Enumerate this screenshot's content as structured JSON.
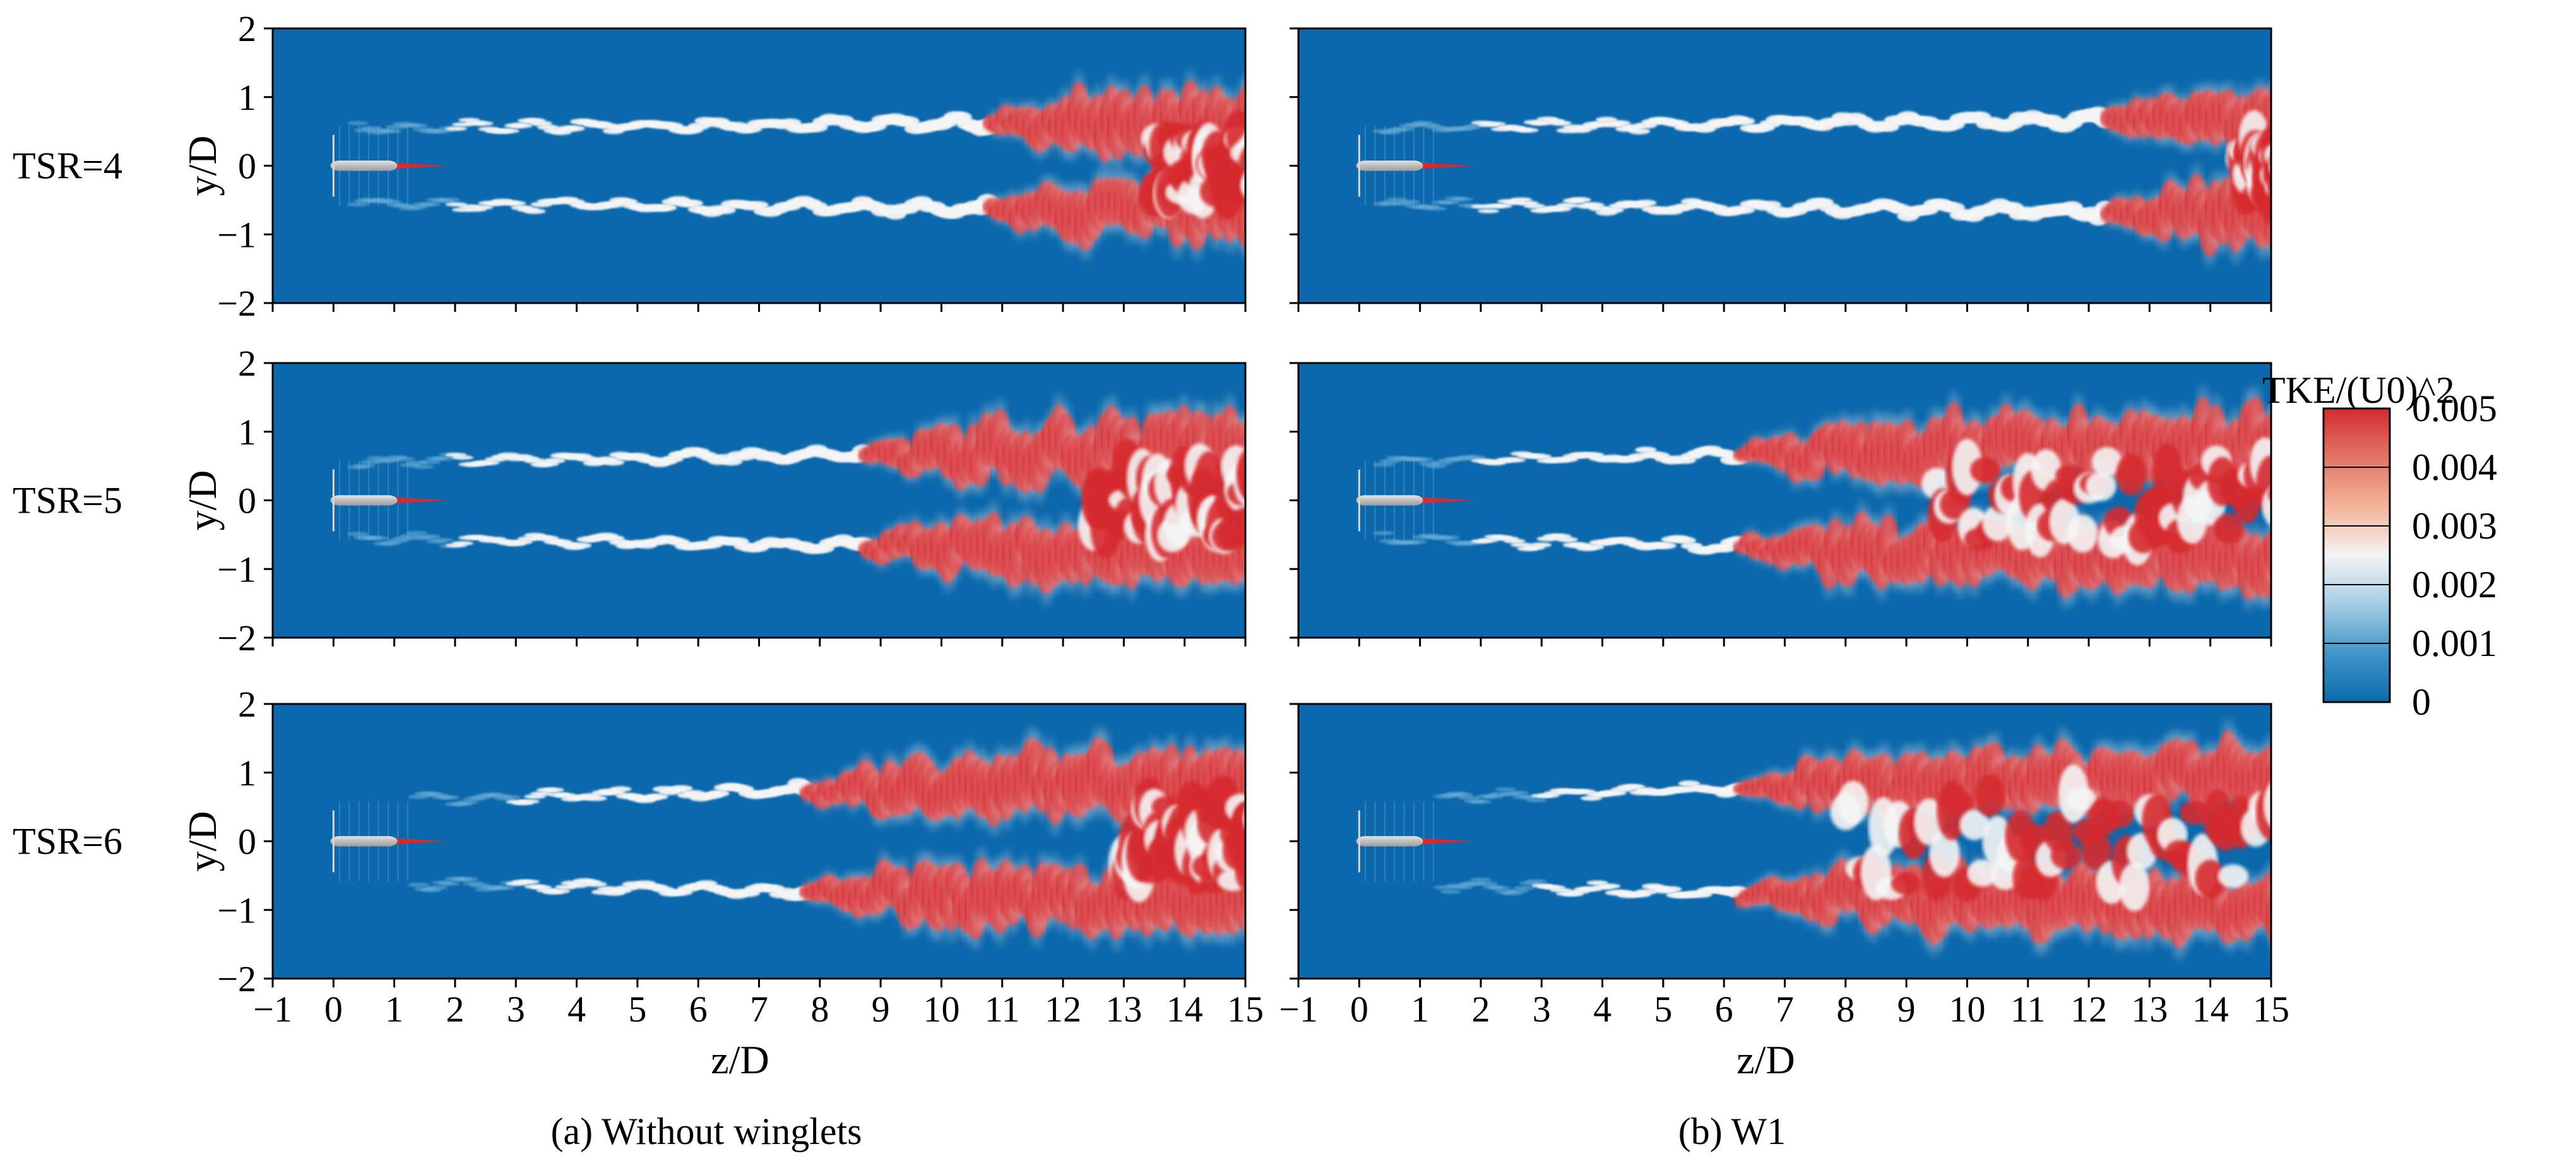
{
  "chart_data": [
    {
      "type": "heatmap",
      "panel_group": "(a) Without winglets",
      "column": 0,
      "row_label": "TSR=4",
      "xlabel": "",
      "ylabel": "y/D",
      "xlim": [
        -1,
        15
      ],
      "ylim": [
        -2,
        2
      ],
      "x_ticks": [],
      "y_ticks": [
        "2",
        "1",
        "0",
        "−1",
        "−2"
      ],
      "wake": {
        "width_start": 0.55,
        "width_end": 0.65,
        "tip_onset_z": 2.0,
        "intense_from_z": 10.5,
        "merge_from_z": 13.5
      }
    },
    {
      "type": "heatmap",
      "panel_group": "(b) W1",
      "column": 1,
      "row_label": "",
      "xlabel": "",
      "ylabel": "",
      "xlim": [
        -1,
        15
      ],
      "ylim": [
        -2,
        2
      ],
      "x_ticks": [],
      "y_ticks": [],
      "wake": {
        "width_start": 0.55,
        "width_end": 0.7,
        "tip_onset_z": 2.0,
        "intense_from_z": 12.0,
        "merge_from_z": 14.5
      }
    },
    {
      "type": "heatmap",
      "panel_group": "(a) Without winglets",
      "column": 0,
      "row_label": "TSR=5",
      "xlabel": "",
      "ylabel": "y/D",
      "xlim": [
        -1,
        15
      ],
      "ylim": [
        -2,
        2
      ],
      "x_ticks": [],
      "y_ticks": [
        "2",
        "1",
        "0",
        "−1",
        "−2"
      ],
      "wake": {
        "width_start": 0.55,
        "width_end": 0.75,
        "tip_onset_z": 2.0,
        "intense_from_z": 8.5,
        "merge_from_z": 12.5
      }
    },
    {
      "type": "heatmap",
      "panel_group": "(b) W1",
      "column": 1,
      "row_label": "",
      "xlabel": "",
      "ylabel": "",
      "xlim": [
        -1,
        15
      ],
      "ylim": [
        -2,
        2
      ],
      "x_ticks": [],
      "y_ticks": [],
      "wake": {
        "width_start": 0.55,
        "width_end": 0.85,
        "tip_onset_z": 2.0,
        "intense_from_z": 6.0,
        "merge_from_z": 9.5
      }
    },
    {
      "type": "heatmap",
      "panel_group": "(a) Without winglets",
      "column": 0,
      "row_label": "TSR=6",
      "xlabel": "z/D",
      "ylabel": "y/D",
      "xlim": [
        -1,
        15
      ],
      "ylim": [
        -2,
        2
      ],
      "x_ticks": [
        "−1",
        "0",
        "1",
        "2",
        "3",
        "4",
        "5",
        "6",
        "7",
        "8",
        "9",
        "10",
        "11",
        "12",
        "13",
        "14",
        "15"
      ],
      "y_ticks": [
        "2",
        "1",
        "0",
        "−1",
        "−2"
      ],
      "wake": {
        "width_start": 0.58,
        "width_end": 0.9,
        "tip_onset_z": 3.0,
        "intense_from_z": 7.5,
        "merge_from_z": 13.0
      }
    },
    {
      "type": "heatmap",
      "panel_group": "(b) W1",
      "column": 1,
      "row_label": "",
      "xlabel": "z/D",
      "ylabel": "",
      "xlim": [
        -1,
        15
      ],
      "ylim": [
        -2,
        2
      ],
      "x_ticks": [
        "−1",
        "0",
        "1",
        "2",
        "3",
        "4",
        "5",
        "6",
        "7",
        "8",
        "9",
        "10",
        "11",
        "12",
        "13",
        "14",
        "15"
      ],
      "y_ticks": [],
      "wake": {
        "width_start": 0.6,
        "width_end": 1.0,
        "tip_onset_z": 3.0,
        "intense_from_z": 6.0,
        "merge_from_z": 8.0
      }
    }
  ],
  "captions": [
    "(a) Without winglets",
    "(b) W1"
  ],
  "colorbar": {
    "title": "TKE/(U0)^2",
    "range": [
      0,
      0.005
    ],
    "labels": [
      "0.005",
      "0.004",
      "0.003",
      "0.002",
      "0.001",
      "0"
    ],
    "colors": [
      "#0b6bab",
      "#3f93c7",
      "#a9cfe5",
      "#f3f3f3",
      "#f5b59c",
      "#e07464",
      "#d42a30"
    ]
  },
  "colors": {
    "background": "#0b68ac",
    "wake_low": "#73b3dc",
    "wake_mid": "#f5f5f5",
    "wake_high": "#d62a2e",
    "nacelle": "#c4c4c4",
    "tip": "#d42a30"
  }
}
